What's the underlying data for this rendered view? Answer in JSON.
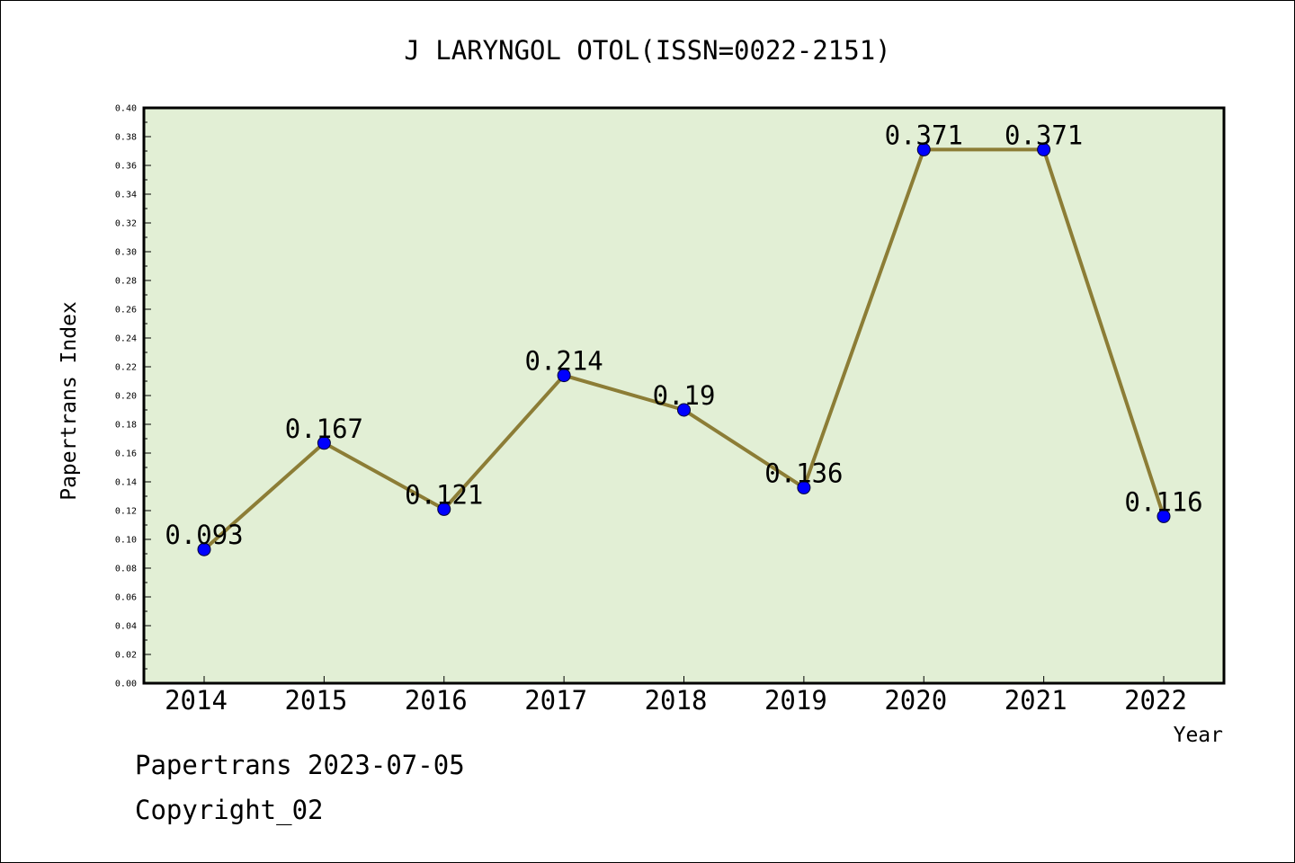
{
  "chart_data": {
    "type": "line",
    "title": "J LARYNGOL OTOL(ISSN=0022-2151)",
    "xlabel": "Year",
    "ylabel": "Papertrans Index",
    "categories": [
      "2014",
      "2015",
      "2016",
      "2017",
      "2018",
      "2019",
      "2020",
      "2021",
      "2022"
    ],
    "series": [
      {
        "values": [
          0.093,
          0.167,
          0.121,
          0.214,
          0.19,
          0.136,
          0.371,
          0.371,
          0.116
        ],
        "data_labels": [
          "0.093",
          "0.167",
          "0.121",
          "0.214",
          "0.19",
          "0.136",
          "0.371",
          "0.371",
          "0.116"
        ]
      }
    ],
    "ylim": [
      0,
      0.4
    ],
    "yticks": [
      "0.00",
      "0.02",
      "0.04",
      "0.06",
      "0.08",
      "0.10",
      "0.12",
      "0.14",
      "0.16",
      "0.18",
      "0.20",
      "0.22",
      "0.24",
      "0.26",
      "0.28",
      "0.30",
      "0.32",
      "0.34",
      "0.36",
      "0.38",
      "0.40"
    ],
    "grid": false,
    "legend": "none",
    "colors": {
      "plot_background": "#e2efd5",
      "line": "#8c7d36",
      "marker": "#0000ff",
      "axis": "#000000"
    }
  },
  "footer": {
    "line1": "Papertrans 2023-07-05",
    "line2": "Copyright_02"
  }
}
